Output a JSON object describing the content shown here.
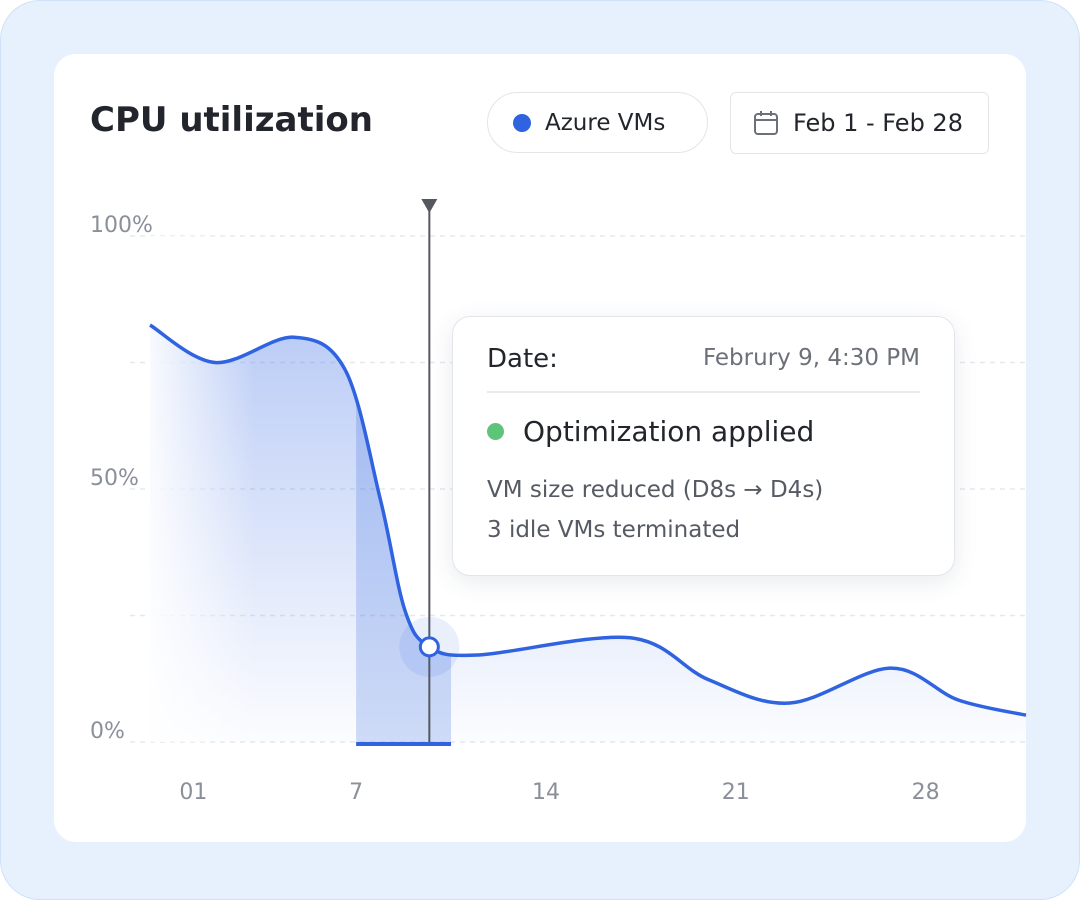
{
  "chart_data": {
    "type": "line",
    "title": "CPU utilization",
    "date_range": "Feb 1 - Feb 28",
    "x": [
      -0.6,
      1.8,
      4.7,
      6.6,
      7.9,
      8.8,
      9.7,
      11.5,
      17.1,
      20,
      23,
      26.7,
      29.2,
      31.7
    ],
    "series": [
      {
        "name": "Azure VMs",
        "color": "#2f63e0",
        "values": [
          82.4,
          75,
          80,
          73.5,
          47.8,
          26,
          18.8,
          17.2,
          20.6,
          12.3,
          7.7,
          14.6,
          8.3,
          5.3
        ]
      }
    ],
    "xlim": [
      -0.6,
      31.7
    ],
    "xticks": [
      {
        "value": 1,
        "label": "01"
      },
      7,
      14,
      21,
      28
    ],
    "ylim": [
      0,
      100
    ],
    "yticks": [
      {
        "value": 0,
        "label": "0%"
      },
      {
        "value": 50,
        "label": "50%"
      },
      {
        "value": 100,
        "label": "100%"
      }
    ],
    "minor_yticks": [
      25,
      75
    ],
    "grid": true,
    "highlight": [
      7,
      10.5
    ],
    "annotation": {
      "x": 9.7,
      "y": 18.8,
      "date_label": "Date:",
      "date": "Februry 9, 4:30 PM",
      "status_color": "#5ec47a",
      "status": "Optimization applied",
      "lines": [
        "VM size reduced (D8s → D4s)",
        "3 idle VMs terminated"
      ]
    }
  }
}
